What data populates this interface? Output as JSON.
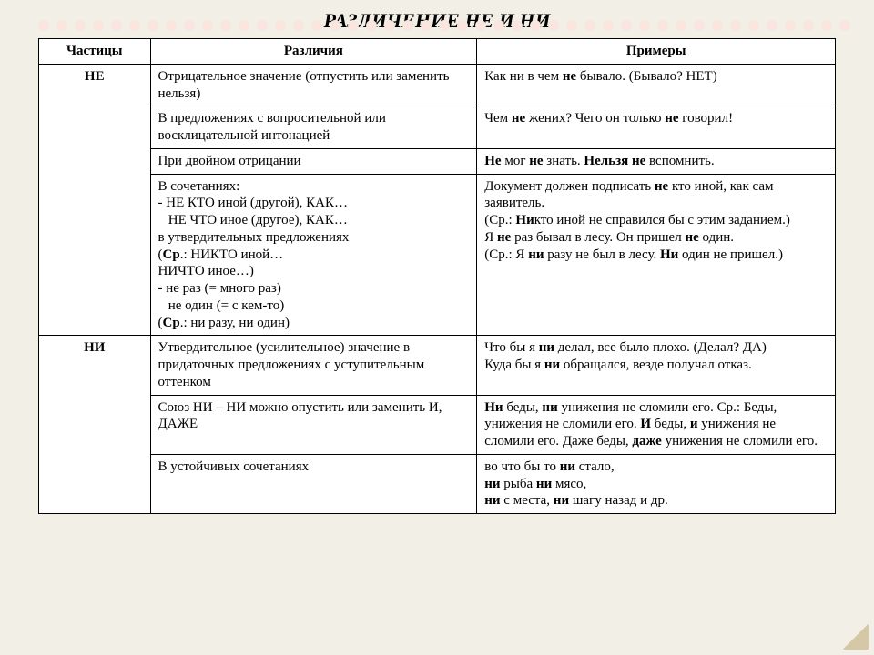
{
  "title": "РАЗЛИЧЕНИЕ НЕ И НИ",
  "headers": {
    "c1": "Частицы",
    "c2": "Различия",
    "c3": "Примеры"
  },
  "ne": {
    "label": "НЕ",
    "r1_diff": "Отрицательное значение (отпустить или заменить нельзя)",
    "r1_ex_a": "Как ни в чем ",
    "r1_ex_b": "не",
    "r1_ex_c": " бывало. (Бывало? НЕТ)",
    "r2_diff": "В предложениях с вопросительной или восклицательной интонацией",
    "r2_ex_a": "Чем ",
    "r2_ex_b": "не",
    "r2_ex_c": " жених? Чего он только ",
    "r2_ex_d": "не",
    "r2_ex_e": " говорил!",
    "r3_diff": "При двойном отрицании",
    "r3_ex_a": "Не",
    "r3_ex_b": " мог ",
    "r3_ex_c": "не",
    "r3_ex_d": " знать. ",
    "r3_ex_e": "Нельзя не",
    "r3_ex_f": " вспомнить.",
    "r4_diff_l1": "В сочетаниях:",
    "r4_diff_l2": "- НЕ КТО иной (другой), КАК…",
    "r4_diff_l3": "  НЕ ЧТО иное (другое), КАК…",
    "r4_diff_l4": "в утвердительных предложениях",
    "r4_diff_l5a": "(",
    "r4_diff_l5b": "Ср",
    "r4_diff_l5c": ".: НИКТО иной…",
    "r4_diff_l6": "НИЧТО иное…)",
    "r4_diff_l7": "- не раз (= много раз)",
    "r4_diff_l8": "  не один (= с кем-то)",
    "r4_diff_l9a": "(",
    "r4_diff_l9b": "Ср",
    "r4_diff_l9c": ".: ни разу, ни один)",
    "r4_ex_a": "Документ должен подписать ",
    "r4_ex_b": "не",
    "r4_ex_c": " кто иной, как сам заявитель.",
    "r4_ex_d": "(Ср.: ",
    "r4_ex_e": "Ни",
    "r4_ex_f": "кто иной не справился бы с этим заданием.)",
    "r4_ex_g": "Я ",
    "r4_ex_h": "не",
    "r4_ex_i": " раз бывал в лесу. Он пришел ",
    "r4_ex_j": "не",
    "r4_ex_k": " один.",
    "r4_ex_l": "(Ср.: Я ",
    "r4_ex_m": "ни",
    "r4_ex_n": " разу не был в лесу. ",
    "r4_ex_o": "Ни",
    "r4_ex_p": " один не пришел.)"
  },
  "ni": {
    "label": "НИ",
    "r1_diff": "Утвердительное (усилительное) значение в придаточных предложениях с уступительным оттенком",
    "r1_ex_a": "Что бы я ",
    "r1_ex_b": "ни",
    "r1_ex_c": " делал, все было плохо. (Делал? ДА)",
    "r1_ex_d": "Куда бы я ",
    "r1_ex_e": "ни",
    "r1_ex_f": " обращался, везде получал отказ.",
    "r2_diff": "Союз НИ – НИ можно опустить или заменить И, ДАЖЕ",
    "r2_ex_a": "Ни",
    "r2_ex_b": " беды, ",
    "r2_ex_c": "ни",
    "r2_ex_d": " унижения не сломили его. Ср.: Беды, унижения не сломили его. ",
    "r2_ex_e": "И",
    "r2_ex_f": " беды, ",
    "r2_ex_g": "и",
    "r2_ex_h": " унижения не сломили его. Даже беды, ",
    "r2_ex_i": "даже",
    "r2_ex_j": " унижения не сломили его.",
    "r3_diff": "В устойчивых сочетаниях",
    "r3_ex_l1a": "во что бы то ",
    "r3_ex_l1b": "ни",
    "r3_ex_l1c": " стало,",
    "r3_ex_l2a": "ни",
    "r3_ex_l2b": " рыба ",
    "r3_ex_l2c": "ни",
    "r3_ex_l2d": " мясо,",
    "r3_ex_l3a": "ни",
    "r3_ex_l3b": " с места, ",
    "r3_ex_l3c": "ни",
    "r3_ex_l3d": " шагу назад и др."
  },
  "style": {
    "bg": "#f2efe6",
    "table_bg": "#ffffff",
    "border": "#000000",
    "title_fontsize": 22,
    "cell_fontsize": 15,
    "particle_fontsize": 34,
    "col_widths_pct": [
      14,
      41,
      45
    ]
  }
}
